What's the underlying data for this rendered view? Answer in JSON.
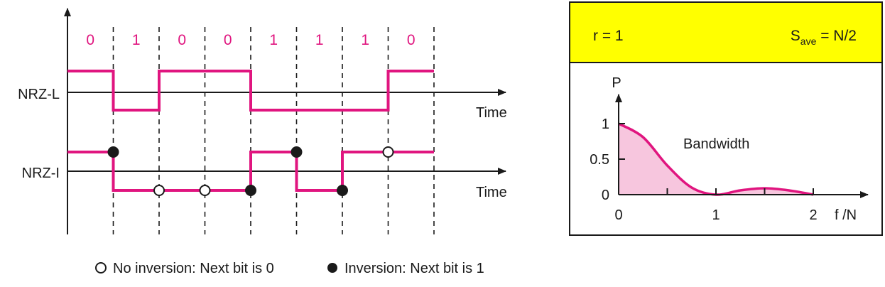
{
  "colors": {
    "signal": "#e0157f",
    "bit": "#e0157f",
    "axis": "#1a1a1a",
    "panel_header": "#ffff00",
    "spectrum_fill": "#f7c6de"
  },
  "bits": [
    "0",
    "1",
    "0",
    "0",
    "1",
    "1",
    "1",
    "0"
  ],
  "nrz_l": {
    "label": "NRZ-L",
    "time_label": "Time",
    "levels": [
      1,
      -1,
      1,
      1,
      -1,
      -1,
      -1,
      1
    ]
  },
  "nrz_i": {
    "label": "NRZ-I",
    "time_label": "Time",
    "levels": [
      1,
      -1,
      -1,
      -1,
      1,
      -1,
      1,
      1
    ],
    "markers": [
      "inversion",
      "no-inversion",
      "no-inversion",
      "inversion",
      "inversion",
      "inversion",
      "no-inversion"
    ]
  },
  "legend": {
    "no_inversion": "No inversion: Next bit is 0",
    "inversion": "Inversion: Next bit is 1"
  },
  "panel": {
    "r_label": "r = 1",
    "s_label": "S",
    "s_sub": "ave",
    "s_value": " = N/2"
  },
  "chart_data": {
    "type": "area",
    "ylabel": "P",
    "xlabel": "f /N",
    "annotation": "Bandwidth",
    "x_ticks": [
      "0",
      "1",
      "2"
    ],
    "y_ticks": [
      "0",
      "0.5",
      "1"
    ],
    "xlim": [
      0,
      2
    ],
    "ylim": [
      0,
      1
    ],
    "x": [
      0,
      0.25,
      0.5,
      0.75,
      1.0,
      1.25,
      1.5,
      1.75,
      2.0
    ],
    "y": [
      1.0,
      0.81,
      0.41,
      0.1,
      0.0,
      0.06,
      0.09,
      0.06,
      0.0
    ]
  }
}
